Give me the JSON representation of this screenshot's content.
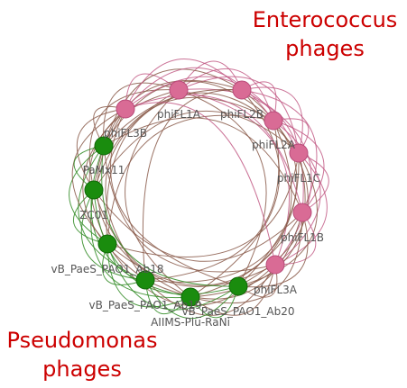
{
  "groups": {
    "enterococcus": {
      "title_line1": "Enterococcus",
      "title_line2": "phages",
      "color": "#cc0000"
    },
    "pseudomonas": {
      "title_line1": "Pseudomonas",
      "title_line2": "phages",
      "color": "#cc0000"
    }
  },
  "colors": {
    "enterococcus_node": "#d96b95",
    "enterococcus_node_stroke": "#b84a78",
    "pseudomonas_node": "#1a8c0e",
    "pseudomonas_node_stroke": "#116608",
    "enterococcus_edge": "#c25b85",
    "pseudomonas_edge": "#2f8a22",
    "cross_edge": "#8a5a4a"
  },
  "nodes": [
    {
      "id": "phiFL1A",
      "label": "phiFL1A",
      "group": "enterococcus"
    },
    {
      "id": "phiFL2B",
      "label": "phiFL2B",
      "group": "enterococcus"
    },
    {
      "id": "phiFL2A",
      "label": "phiFL2A",
      "group": "enterococcus"
    },
    {
      "id": "phiFL1C",
      "label": "phiFL1C",
      "group": "enterococcus"
    },
    {
      "id": "phiFL1B",
      "label": "phiFL1B",
      "group": "enterococcus"
    },
    {
      "id": "phiFL3A",
      "label": "phiFL3A",
      "group": "enterococcus"
    },
    {
      "id": "vB_PaeS_PAO1_Ab20",
      "label": "vB_PaeS_PAO1_Ab20",
      "group": "pseudomonas"
    },
    {
      "id": "AIIMS-Plu-RaNi",
      "label": "AIIMS-Plu-RaNi",
      "group": "pseudomonas"
    },
    {
      "id": "vB_PaeS_PAO1_Ab19",
      "label": "vB_PaeS_PAO1_Ab19",
      "group": "pseudomonas"
    },
    {
      "id": "vB_PaeS_PAO1_Ab18",
      "label": "vB_PaeS_PAO1_Ab18",
      "group": "pseudomonas"
    },
    {
      "id": "ZC01",
      "label": "ZC01",
      "group": "pseudomonas"
    },
    {
      "id": "PaMx11",
      "label": "PaMx11",
      "group": "pseudomonas"
    },
    {
      "id": "phiFL3B",
      "label": "phiFL3B",
      "group": "enterococcus"
    }
  ]
}
